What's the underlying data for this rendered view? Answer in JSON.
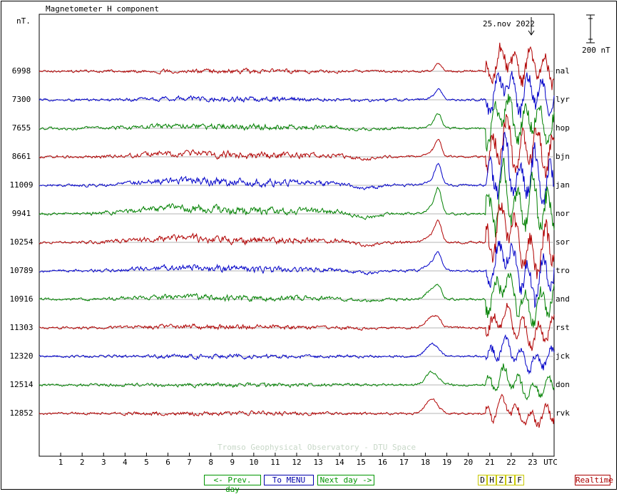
{
  "header": {
    "title": "Magnetometer H component",
    "unit_label": "nT.",
    "date_label": "25.nov 2022",
    "scale_label": "200 nT",
    "watermark": "Tromso Geophysical Observatory - DTU Space"
  },
  "nav": {
    "prev_label": "<- Prev. day",
    "menu_label": "To MENU",
    "next_label": "Next day ->",
    "components": [
      "D",
      "H",
      "Z",
      "I",
      "F"
    ],
    "realtime_label": "Realtime"
  },
  "colors": {
    "red": "#b00000",
    "blue": "#0000c8",
    "green": "#008000",
    "grid": "#b4b4b4",
    "nav_green": "#009600",
    "nav_blue": "#0000aa",
    "nav_yellow": "#c8c800",
    "nav_red": "#aa0000"
  },
  "chart_data": {
    "type": "line",
    "title": "Magnetometer H component",
    "ylabel": "nT.",
    "x_ticks": [
      "1",
      "2",
      "3",
      "4",
      "5",
      "6",
      "7",
      "8",
      "9",
      "10",
      "11",
      "12",
      "13",
      "14",
      "15",
      "16",
      "17",
      "18",
      "19",
      "20",
      "21",
      "22",
      "23",
      "UTC"
    ],
    "xlim": [
      0,
      24
    ],
    "scale_bar_nT": 200,
    "series": [
      {
        "name": "nal",
        "baseline": "6998",
        "color": "red"
      },
      {
        "name": "lyr",
        "baseline": "7300",
        "color": "blue"
      },
      {
        "name": "hop",
        "baseline": "7655",
        "color": "green"
      },
      {
        "name": "bjn",
        "baseline": "8661",
        "color": "red"
      },
      {
        "name": "jan",
        "baseline": "11009",
        "color": "blue"
      },
      {
        "name": "nor",
        "baseline": "9941",
        "color": "green"
      },
      {
        "name": "sor",
        "baseline": "10254",
        "color": "red"
      },
      {
        "name": "tro",
        "baseline": "10789",
        "color": "blue"
      },
      {
        "name": "and",
        "baseline": "10916",
        "color": "green"
      },
      {
        "name": "rst",
        "baseline": "11303",
        "color": "red"
      },
      {
        "name": "jck",
        "baseline": "12320",
        "color": "blue"
      },
      {
        "name": "don",
        "baseline": "12514",
        "color": "green"
      },
      {
        "name": "rvk",
        "baseline": "12852",
        "color": "red"
      }
    ]
  }
}
